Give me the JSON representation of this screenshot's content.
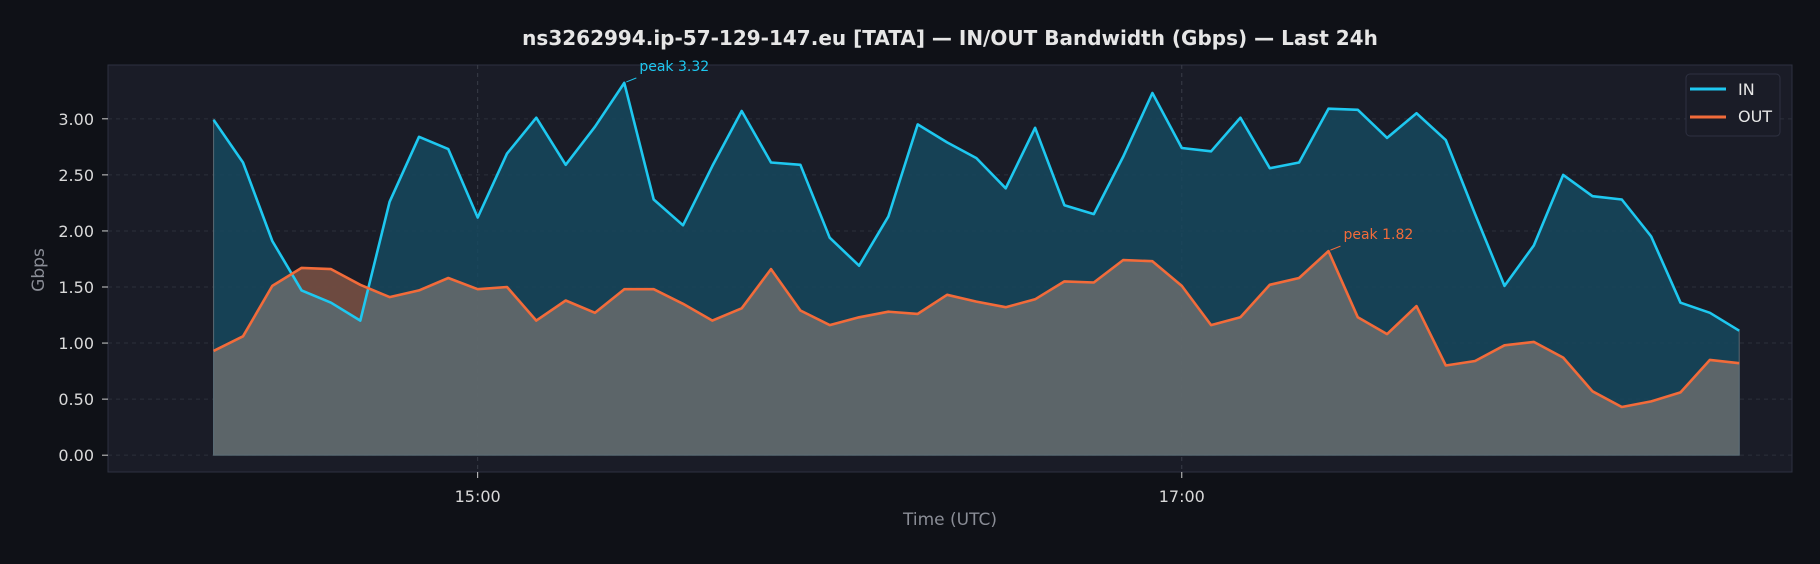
{
  "chart_data": {
    "type": "area",
    "title": "ns3262994.ip-57-129-147.eu [TATA] — IN/OUT Bandwidth (Gbps) — Last 24h",
    "xlabel": "Time (UTC)",
    "ylabel": "Gbps",
    "y_ticks": [
      "0.00",
      "0.50",
      "1.00",
      "1.50",
      "2.00",
      "2.50",
      "3.00"
    ],
    "ylim": [
      -0.15,
      3.48
    ],
    "x_ticks": [
      {
        "label": "15:00",
        "hour": 15
      },
      {
        "label": "17:00",
        "hour": 17
      }
    ],
    "x_start": "14:15",
    "x_step_minutes": 5,
    "xlim": [
      "13:57",
      "18:44"
    ],
    "grid": true,
    "legend_position": "top-right",
    "series": [
      {
        "name": "IN",
        "color": "#1ec8f0",
        "fill": "#16485e",
        "values": [
          2.99,
          2.61,
          1.91,
          1.47,
          1.36,
          1.2,
          2.26,
          2.84,
          2.73,
          2.12,
          2.69,
          3.01,
          2.59,
          2.93,
          3.32,
          2.28,
          2.05,
          2.58,
          3.07,
          2.61,
          2.59,
          1.94,
          1.69,
          2.13,
          2.95,
          2.79,
          2.65,
          2.38,
          2.92,
          2.23,
          2.15,
          2.66,
          3.23,
          2.74,
          2.71,
          3.01,
          2.56,
          2.61,
          3.09,
          3.08,
          2.83,
          3.05,
          2.81,
          2.15,
          1.51,
          1.87,
          2.5,
          2.31,
          2.28,
          1.95,
          1.36,
          1.27,
          1.11
        ]
      },
      {
        "name": "OUT",
        "color": "#f26b3a",
        "fill": "#6e6e6e",
        "values": [
          0.93,
          1.06,
          1.51,
          1.67,
          1.66,
          1.52,
          1.41,
          1.47,
          1.58,
          1.48,
          1.5,
          1.2,
          1.38,
          1.27,
          1.48,
          1.48,
          1.35,
          1.2,
          1.31,
          1.66,
          1.29,
          1.16,
          1.23,
          1.28,
          1.26,
          1.43,
          1.37,
          1.32,
          1.39,
          1.55,
          1.54,
          1.74,
          1.73,
          1.51,
          1.16,
          1.23,
          1.52,
          1.58,
          1.82,
          1.23,
          1.08,
          1.33,
          0.8,
          0.84,
          0.98,
          1.01,
          0.87,
          0.57,
          0.43,
          0.48,
          0.56,
          0.85,
          0.82
        ]
      }
    ],
    "annotations": [
      {
        "text": "peak 3.32",
        "series": "IN",
        "index": 14,
        "color": "#1ec8f0"
      },
      {
        "text": "peak 1.82",
        "series": "OUT",
        "index": 38,
        "color": "#f26b3a"
      }
    ]
  }
}
